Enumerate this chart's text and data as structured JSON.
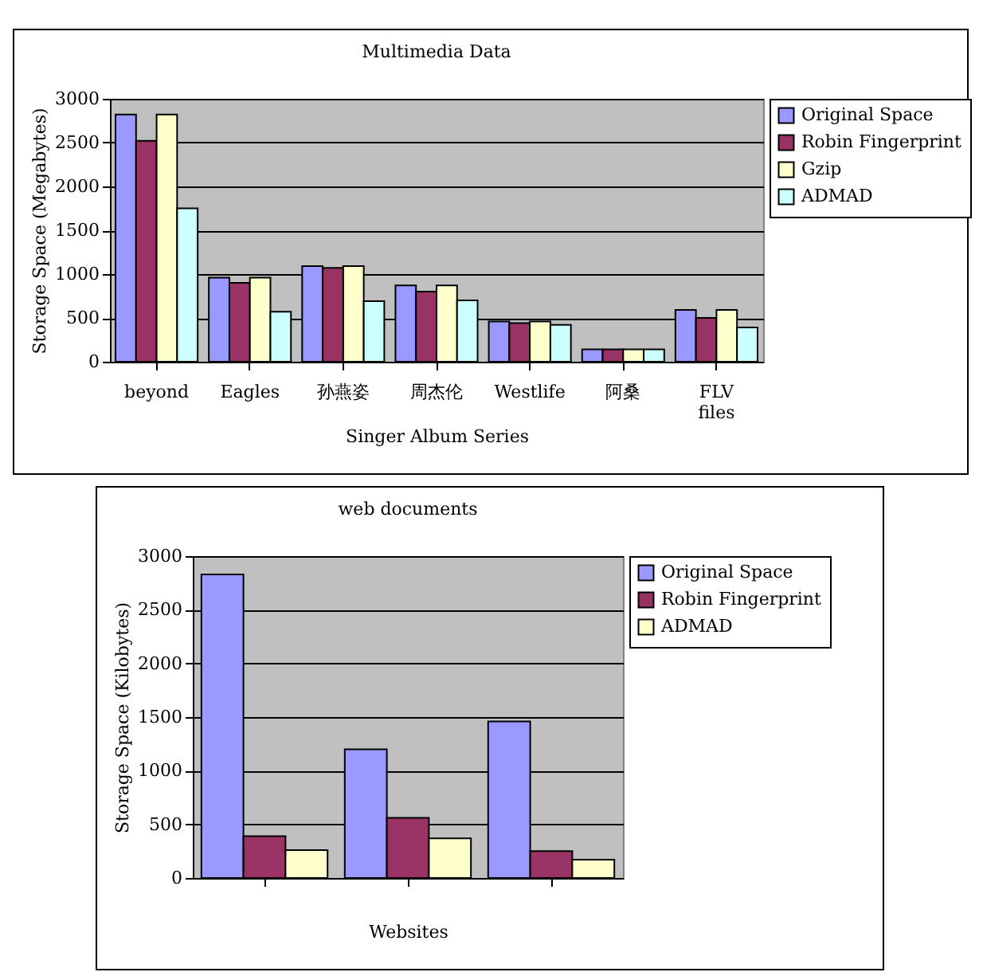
{
  "chart_data": [
    {
      "type": "bar",
      "title": "Multimedia Data",
      "xlabel": "Singer Album Series",
      "ylabel": "Storage Space (Megabytes)",
      "categories": [
        "beyond",
        "Eagles",
        "孙燕姿",
        "周杰伦",
        "Westlife",
        "阿桑",
        "FLV files"
      ],
      "series": [
        {
          "name": "Original Space",
          "color": "#9999ff",
          "values": [
            2820,
            960,
            1090,
            870,
            460,
            140,
            590
          ]
        },
        {
          "name": "Robin Fingerprint",
          "color": "#993366",
          "values": [
            2520,
            900,
            1070,
            800,
            440,
            140,
            500
          ]
        },
        {
          "name": "Gzip",
          "color": "#ffffcc",
          "values": [
            2820,
            960,
            1090,
            870,
            460,
            140,
            590
          ]
        },
        {
          "name": "ADMAD",
          "color": "#ccffff",
          "values": [
            1750,
            570,
            690,
            700,
            420,
            140,
            390
          ]
        }
      ],
      "ylim": [
        0,
        3000
      ],
      "yticks": [
        0,
        500,
        1000,
        1500,
        2000,
        2500,
        3000
      ],
      "grid": "y",
      "legend": "right"
    },
    {
      "type": "bar",
      "title": "web documents",
      "xlabel": "Websites",
      "ylabel": "Storage Space (Kilobytes)",
      "categories": [
        null,
        null,
        null
      ],
      "series": [
        {
          "name": "Original Space",
          "color": "#9999ff",
          "values": [
            2830,
            1200,
            1460
          ]
        },
        {
          "name": "Robin Fingerprint",
          "color": "#993366",
          "values": [
            390,
            560,
            250
          ]
        },
        {
          "name": "ADMAD",
          "color": "#ffffcc",
          "values": [
            260,
            370,
            170
          ]
        }
      ],
      "ylim": [
        0,
        3000
      ],
      "yticks": [
        0,
        500,
        1000,
        1500,
        2000,
        2500,
        3000
      ],
      "grid": "y",
      "legend": "right"
    }
  ]
}
